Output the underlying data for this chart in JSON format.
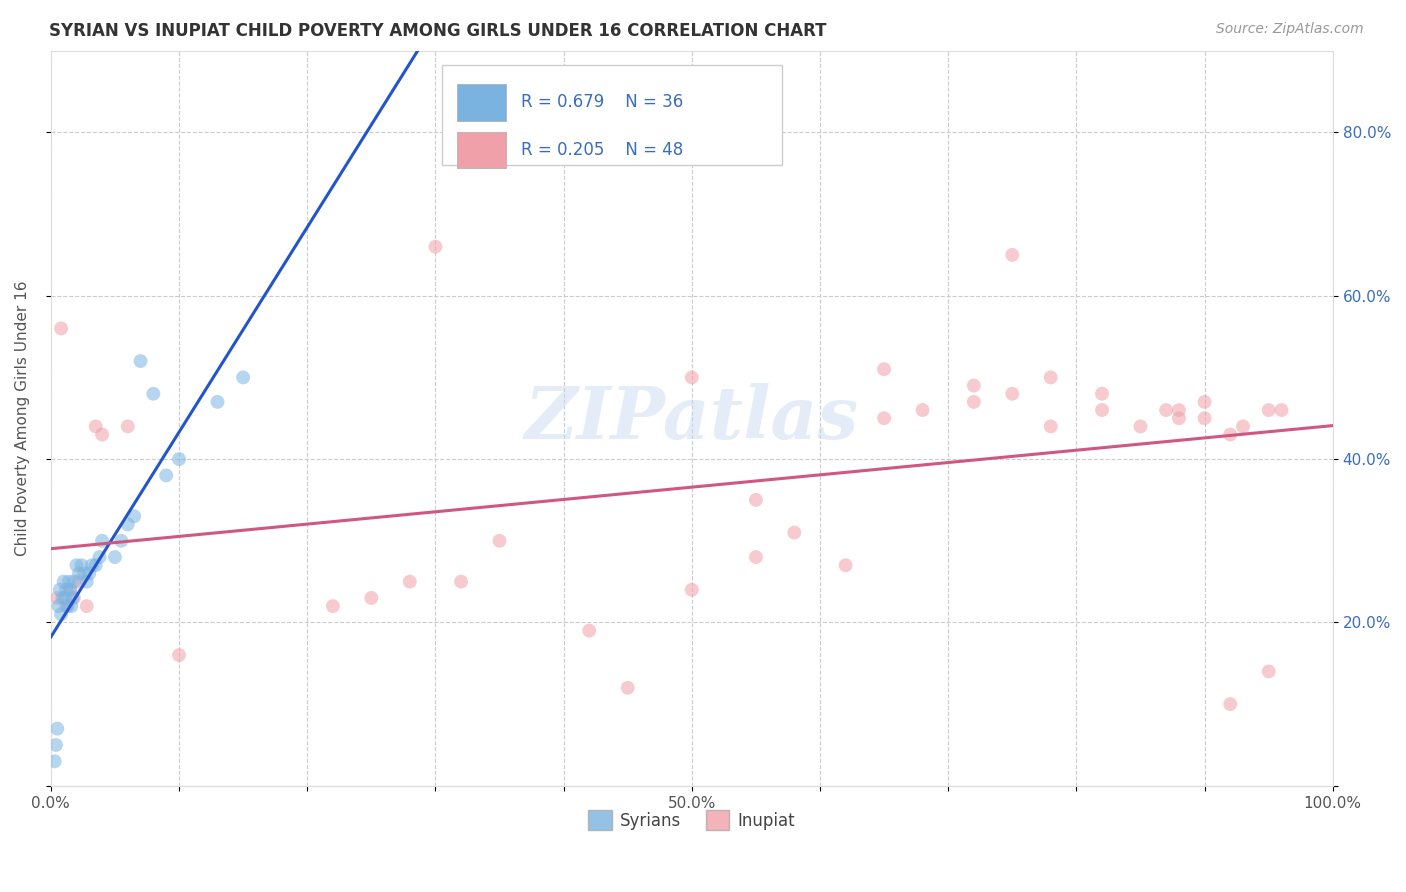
{
  "title": "SYRIAN VS INUPIAT CHILD POVERTY AMONG GIRLS UNDER 16 CORRELATION CHART",
  "source": "Source: ZipAtlas.com",
  "ylabel": "Child Poverty Among Girls Under 16",
  "xlim": [
    0.0,
    1.0
  ],
  "ylim": [
    0.0,
    0.9
  ],
  "xtick_positions": [
    0.0,
    0.1,
    0.2,
    0.3,
    0.4,
    0.5,
    0.6,
    0.7,
    0.8,
    0.9,
    1.0
  ],
  "xticklabels": [
    "0.0%",
    "",
    "",
    "",
    "",
    "50.0%",
    "",
    "",
    "",
    "",
    "100.0%"
  ],
  "ytick_positions": [
    0.0,
    0.2,
    0.4,
    0.6,
    0.8
  ],
  "yticklabels": [
    "",
    "20.0%",
    "40.0%",
    "60.0%",
    "80.0%"
  ],
  "watermark": "ZIPatlas",
  "legend_text_color": "#3a6dbd",
  "syrian_color": "#7ab3e0",
  "inupiat_color": "#f0a0a8",
  "syrian_line_color": "#2255cc",
  "inupiat_line_color": "#d05880",
  "grid_color": "#cccccc",
  "title_color": "#333333",
  "axis_label_color": "#555555",
  "tick_label_color": "#555555",
  "source_color": "#999999",
  "background_color": "#ffffff",
  "syrians_x": [
    0.003,
    0.004,
    0.005,
    0.006,
    0.007,
    0.008,
    0.009,
    0.01,
    0.011,
    0.012,
    0.013,
    0.014,
    0.015,
    0.016,
    0.017,
    0.018,
    0.02,
    0.022,
    0.024,
    0.026,
    0.028,
    0.03,
    0.032,
    0.035,
    0.038,
    0.04,
    0.05,
    0.055,
    0.06,
    0.065,
    0.07,
    0.08,
    0.09,
    0.1,
    0.13,
    0.15
  ],
  "syrians_y": [
    0.03,
    0.05,
    0.07,
    0.22,
    0.24,
    0.21,
    0.23,
    0.25,
    0.23,
    0.24,
    0.22,
    0.25,
    0.24,
    0.22,
    0.23,
    0.25,
    0.27,
    0.26,
    0.27,
    0.26,
    0.25,
    0.26,
    0.27,
    0.27,
    0.28,
    0.3,
    0.28,
    0.3,
    0.32,
    0.33,
    0.52,
    0.48,
    0.38,
    0.4,
    0.47,
    0.5
  ],
  "inupiat_x": [
    0.005,
    0.008,
    0.012,
    0.015,
    0.018,
    0.022,
    0.028,
    0.035,
    0.04,
    0.06,
    0.1,
    0.22,
    0.25,
    0.28,
    0.32,
    0.35,
    0.42,
    0.45,
    0.5,
    0.55,
    0.58,
    0.62,
    0.65,
    0.68,
    0.72,
    0.75,
    0.78,
    0.82,
    0.85,
    0.87,
    0.88,
    0.9,
    0.92,
    0.93,
    0.95,
    0.96,
    0.65,
    0.72,
    0.78,
    0.82,
    0.88,
    0.9,
    0.92,
    0.95,
    0.55,
    0.3,
    0.5,
    0.75
  ],
  "inupiat_y": [
    0.23,
    0.56,
    0.22,
    0.24,
    0.23,
    0.25,
    0.22,
    0.44,
    0.43,
    0.44,
    0.16,
    0.22,
    0.23,
    0.25,
    0.25,
    0.3,
    0.19,
    0.12,
    0.24,
    0.28,
    0.31,
    0.27,
    0.45,
    0.46,
    0.47,
    0.48,
    0.44,
    0.46,
    0.44,
    0.46,
    0.45,
    0.47,
    0.43,
    0.44,
    0.46,
    0.46,
    0.51,
    0.49,
    0.5,
    0.48,
    0.46,
    0.45,
    0.1,
    0.14,
    0.35,
    0.66,
    0.5,
    0.65
  ],
  "marker_size": 100,
  "marker_alpha": 0.55,
  "line_width": 2.2
}
